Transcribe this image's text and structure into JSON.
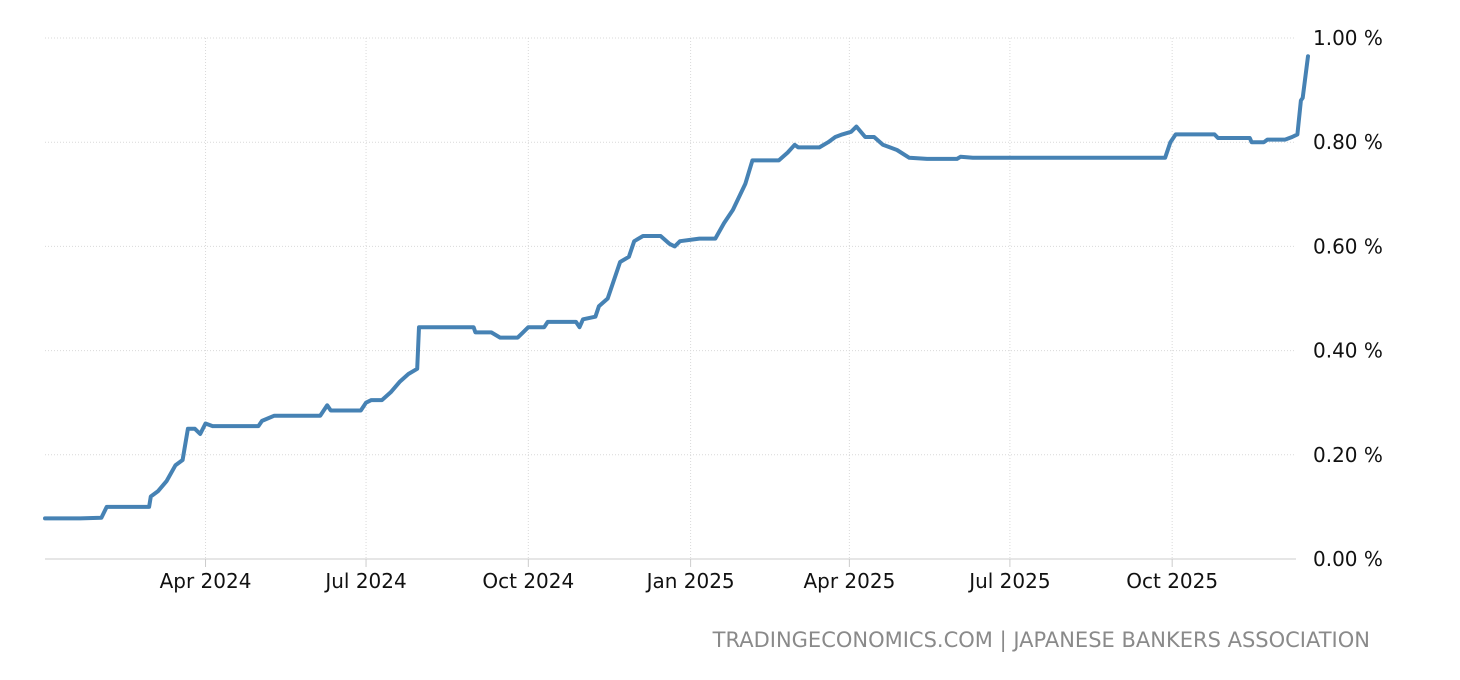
{
  "source_text": "TRADINGECONOMICS.COM | JAPANESE BANKERS ASSOCIATION",
  "chart_data": {
    "type": "line",
    "title": "",
    "xlabel": "",
    "ylabel": "",
    "ylim": [
      0,
      1
    ],
    "y_ticks": [
      0.0,
      0.2,
      0.4,
      0.6,
      0.8,
      1.0
    ],
    "y_tick_labels": [
      "0.00 %",
      "0.20 %",
      "0.40 %",
      "0.60 %",
      "0.80 %",
      "1.00 %"
    ],
    "x_range": [
      "2024-01-01",
      "2025-12-17"
    ],
    "x_ticks": [
      "2024-04-01",
      "2024-07-01",
      "2024-10-01",
      "2025-01-01",
      "2025-04-01",
      "2025-07-01",
      "2025-10-01"
    ],
    "x_tick_labels": [
      "Apr 2024",
      "Jul 2024",
      "Oct 2024",
      "Jan 2025",
      "Apr 2025",
      "Jul 2025",
      "Oct 2025"
    ],
    "grid": true,
    "colors": {
      "line": "#4682b4",
      "grid": "#d9d9d9"
    },
    "series": [
      {
        "points": [
          [
            "2024-01-01",
            0.078
          ],
          [
            "2024-01-21",
            0.078
          ],
          [
            "2024-02-02",
            0.079
          ],
          [
            "2024-02-05",
            0.1
          ],
          [
            "2024-02-29",
            0.1
          ],
          [
            "2024-03-01",
            0.12
          ],
          [
            "2024-03-05",
            0.13
          ],
          [
            "2024-03-10",
            0.15
          ],
          [
            "2024-03-15",
            0.18
          ],
          [
            "2024-03-19",
            0.19
          ],
          [
            "2024-03-22",
            0.25
          ],
          [
            "2024-03-26",
            0.25
          ],
          [
            "2024-03-29",
            0.24
          ],
          [
            "2024-04-01",
            0.26
          ],
          [
            "2024-04-05",
            0.255
          ],
          [
            "2024-05-01",
            0.255
          ],
          [
            "2024-05-03",
            0.265
          ],
          [
            "2024-05-10",
            0.275
          ],
          [
            "2024-06-05",
            0.275
          ],
          [
            "2024-06-07",
            0.285
          ],
          [
            "2024-06-09",
            0.295
          ],
          [
            "2024-06-11",
            0.285
          ],
          [
            "2024-06-28",
            0.285
          ],
          [
            "2024-07-01",
            0.3
          ],
          [
            "2024-07-04",
            0.305
          ],
          [
            "2024-07-10",
            0.305
          ],
          [
            "2024-07-15",
            0.32
          ],
          [
            "2024-07-20",
            0.34
          ],
          [
            "2024-07-25",
            0.355
          ],
          [
            "2024-07-30",
            0.365
          ],
          [
            "2024-07-31",
            0.445
          ],
          [
            "2024-08-31",
            0.445
          ],
          [
            "2024-09-01",
            0.435
          ],
          [
            "2024-09-10",
            0.435
          ],
          [
            "2024-09-15",
            0.425
          ],
          [
            "2024-09-25",
            0.425
          ],
          [
            "2024-09-28",
            0.435
          ],
          [
            "2024-10-01",
            0.445
          ],
          [
            "2024-10-10",
            0.445
          ],
          [
            "2024-10-12",
            0.455
          ],
          [
            "2024-10-28",
            0.455
          ],
          [
            "2024-10-30",
            0.445
          ],
          [
            "2024-11-01",
            0.46
          ],
          [
            "2024-11-08",
            0.465
          ],
          [
            "2024-11-10",
            0.485
          ],
          [
            "2024-11-15",
            0.5
          ],
          [
            "2024-11-18",
            0.53
          ],
          [
            "2024-11-22",
            0.57
          ],
          [
            "2024-11-27",
            0.58
          ],
          [
            "2024-11-30",
            0.61
          ],
          [
            "2024-12-05",
            0.62
          ],
          [
            "2024-12-15",
            0.62
          ],
          [
            "2024-12-20",
            0.605
          ],
          [
            "2024-12-23",
            0.6
          ],
          [
            "2024-12-26",
            0.61
          ],
          [
            "2025-01-06",
            0.615
          ],
          [
            "2025-01-12",
            0.615
          ],
          [
            "2025-01-15",
            0.615
          ],
          [
            "2025-01-20",
            0.645
          ],
          [
            "2025-01-25",
            0.67
          ],
          [
            "2025-02-01",
            0.72
          ],
          [
            "2025-02-05",
            0.765
          ],
          [
            "2025-02-20",
            0.765
          ],
          [
            "2025-02-25",
            0.78
          ],
          [
            "2025-03-01",
            0.795
          ],
          [
            "2025-03-03",
            0.79
          ],
          [
            "2025-03-15",
            0.79
          ],
          [
            "2025-03-20",
            0.8
          ],
          [
            "2025-03-24",
            0.81
          ],
          [
            "2025-03-28",
            0.815
          ],
          [
            "2025-04-02",
            0.82
          ],
          [
            "2025-04-05",
            0.83
          ],
          [
            "2025-04-10",
            0.81
          ],
          [
            "2025-04-15",
            0.81
          ],
          [
            "2025-04-20",
            0.795
          ],
          [
            "2025-04-28",
            0.785
          ],
          [
            "2025-05-05",
            0.77
          ],
          [
            "2025-05-15",
            0.768
          ],
          [
            "2025-06-01",
            0.768
          ],
          [
            "2025-06-03",
            0.772
          ],
          [
            "2025-06-10",
            0.77
          ],
          [
            "2025-09-27",
            0.77
          ],
          [
            "2025-09-30",
            0.8
          ],
          [
            "2025-10-03",
            0.815
          ],
          [
            "2025-10-25",
            0.815
          ],
          [
            "2025-10-27",
            0.808
          ],
          [
            "2025-11-14",
            0.808
          ],
          [
            "2025-11-15",
            0.8
          ],
          [
            "2025-11-22",
            0.8
          ],
          [
            "2025-11-24",
            0.805
          ],
          [
            "2025-12-04",
            0.805
          ],
          [
            "2025-12-08",
            0.81
          ],
          [
            "2025-12-11",
            0.815
          ],
          [
            "2025-12-13",
            0.88
          ],
          [
            "2025-12-14",
            0.885
          ],
          [
            "2025-12-17",
            0.965
          ]
        ]
      }
    ]
  }
}
